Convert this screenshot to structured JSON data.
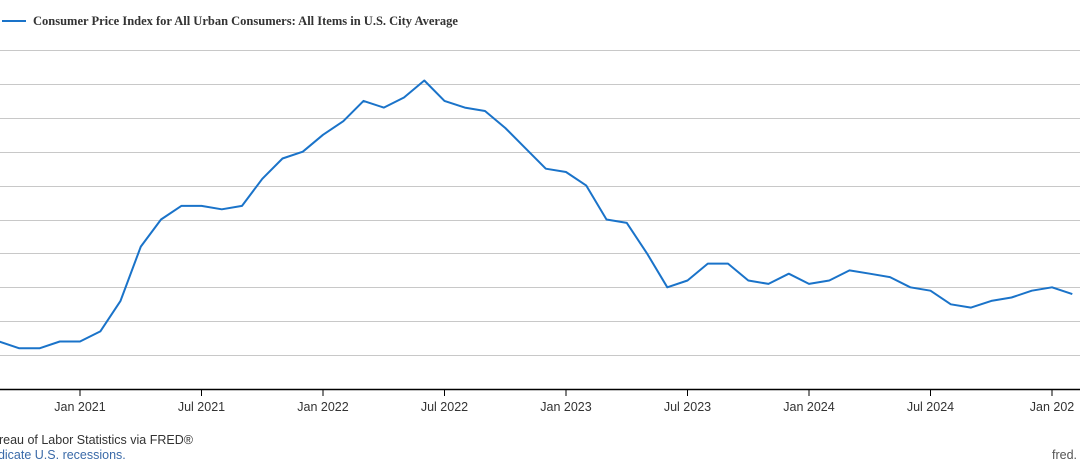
{
  "chart_data": {
    "type": "line",
    "legend": {
      "placement": "top-left",
      "label": "Consumer Price Index for All Urban Consumers: All Items in U.S. City Average"
    },
    "series": [
      {
        "name": "Consumer Price Index for All Urban Consumers: All Items in U.S. City Average",
        "color": "#1a73c9",
        "x": [
          "2020-08",
          "2020-09",
          "2020-10",
          "2020-11",
          "2020-12",
          "2021-01",
          "2021-02",
          "2021-03",
          "2021-04",
          "2021-05",
          "2021-06",
          "2021-07",
          "2021-08",
          "2021-09",
          "2021-10",
          "2021-11",
          "2021-12",
          "2022-01",
          "2022-02",
          "2022-03",
          "2022-04",
          "2022-05",
          "2022-06",
          "2022-07",
          "2022-08",
          "2022-09",
          "2022-10",
          "2022-11",
          "2022-12",
          "2023-01",
          "2023-02",
          "2023-03",
          "2023-04",
          "2023-05",
          "2023-06",
          "2023-07",
          "2023-08",
          "2023-09",
          "2023-10",
          "2023-11",
          "2023-12",
          "2024-01",
          "2024-02",
          "2024-03",
          "2024-04",
          "2024-05",
          "2024-06",
          "2024-07",
          "2024-08",
          "2024-09",
          "2024-10",
          "2024-11",
          "2024-12",
          "2025-01",
          "2025-02"
        ],
        "values": [
          1.3,
          1.4,
          1.2,
          1.2,
          1.4,
          1.4,
          1.7,
          2.6,
          4.2,
          5.0,
          5.4,
          5.4,
          5.3,
          5.4,
          6.2,
          6.8,
          7.0,
          7.5,
          7.9,
          8.5,
          8.3,
          8.6,
          9.1,
          8.5,
          8.3,
          8.2,
          7.7,
          7.1,
          6.5,
          6.4,
          6.0,
          5.0,
          4.9,
          4.0,
          3.0,
          3.2,
          3.7,
          3.7,
          3.2,
          3.1,
          3.4,
          3.1,
          3.2,
          3.5,
          3.4,
          3.3,
          3.0,
          2.9,
          2.5,
          2.4,
          2.6,
          2.7,
          2.9,
          3.0,
          2.8
        ]
      }
    ],
    "x_ticks": [
      {
        "date": "2021-01",
        "label": "Jan 2021"
      },
      {
        "date": "2021-07",
        "label": "Jul 2021"
      },
      {
        "date": "2022-01",
        "label": "Jan 2022"
      },
      {
        "date": "2022-07",
        "label": "Jul 2022"
      },
      {
        "date": "2023-01",
        "label": "Jan 2023"
      },
      {
        "date": "2023-07",
        "label": "Jul 2023"
      },
      {
        "date": "2024-01",
        "label": "Jan 2024"
      },
      {
        "date": "2024-07",
        "label": "Jul 2024"
      },
      {
        "date": "2025-01",
        "label": "Jan 202"
      }
    ],
    "y_gridlines": [
      0,
      1,
      2,
      3,
      4,
      5,
      6,
      7,
      8,
      9,
      10
    ],
    "ylim": [
      0,
      10
    ],
    "grid": true,
    "gridline_color": "#c8c8c8"
  },
  "footer": {
    "source": "ureau of Labor Statistics via FRED®",
    "recession_note": "ndicate U.S. recessions.",
    "site": "fred."
  }
}
